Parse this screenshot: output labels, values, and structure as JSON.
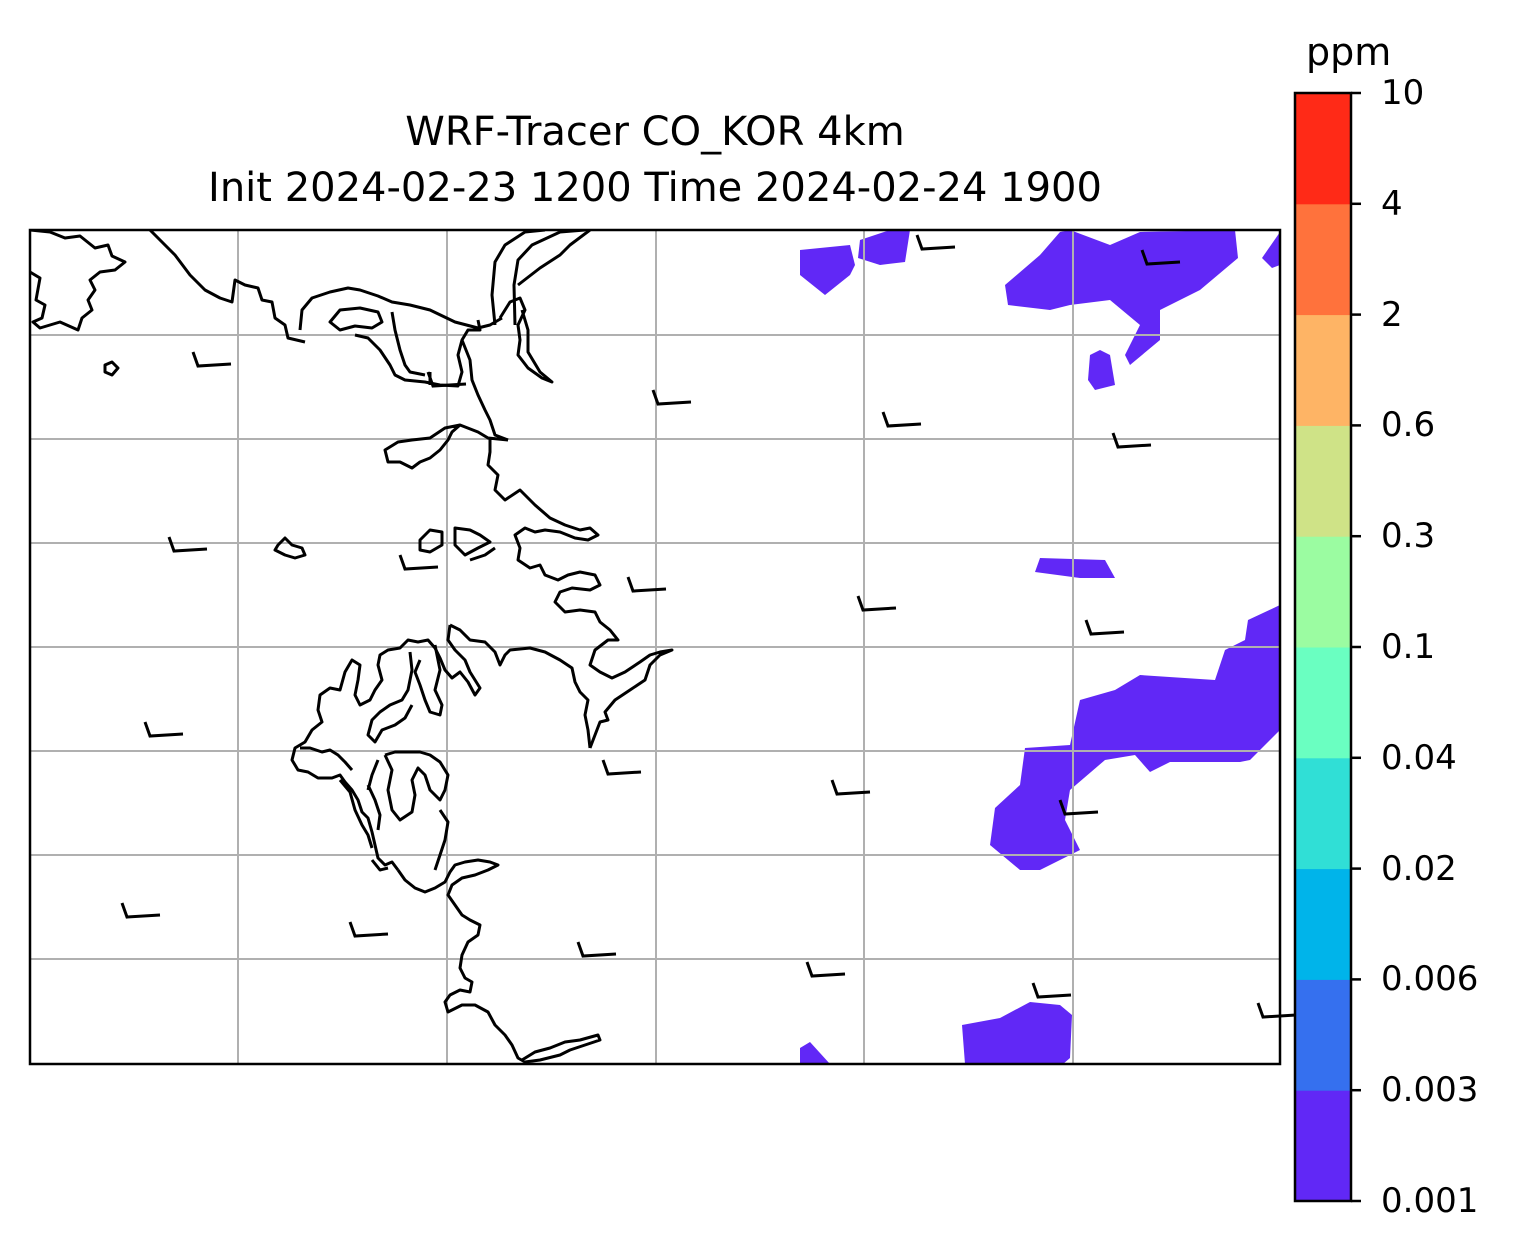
{
  "title": {
    "line1": "WRF-Tracer CO_KOR 4km",
    "line2": "Init 2024-02-23 1200 Time 2024-02-24 1900"
  },
  "colorbar": {
    "units": "ppm",
    "levels": [
      "0.001",
      "0.003",
      "0.006",
      "0.02",
      "0.04",
      "0.1",
      "0.3",
      "0.6",
      "2",
      "4",
      "10"
    ],
    "colors": [
      "#6128f6",
      "#3570ef",
      "#00b4ea",
      "#30dfd6",
      "#6affc1",
      "#9bfca1",
      "#cfe387",
      "#feb465",
      "#ff723c",
      "#ff2a17"
    ]
  },
  "map": {
    "field_fill_color": "#6128f6",
    "coastline_color": "#000000",
    "gridline_color": "#b0b0b0"
  }
}
